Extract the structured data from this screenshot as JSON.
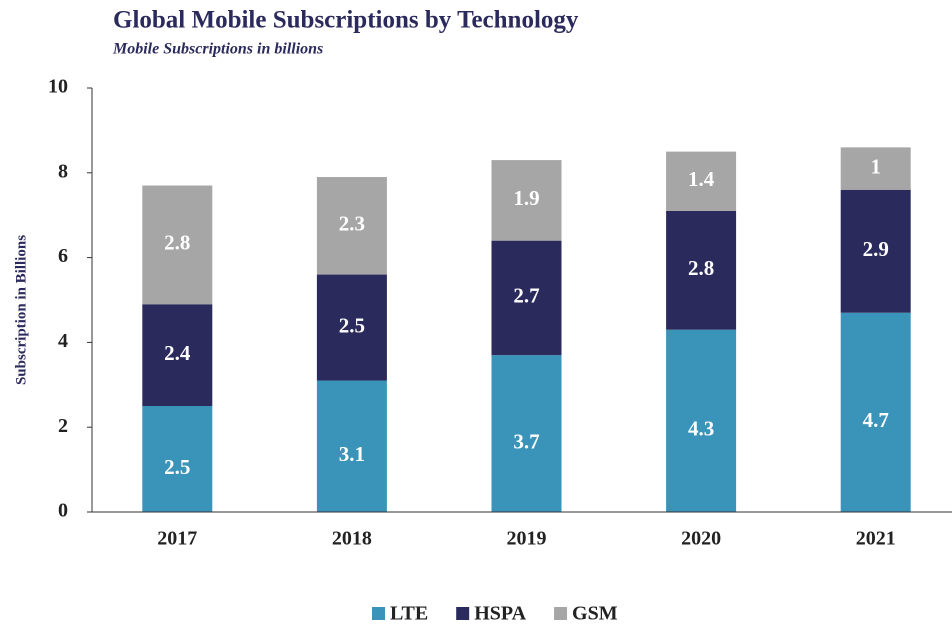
{
  "chart_data": {
    "type": "stacked_bar",
    "title": "Global Mobile Subscriptions by Technology",
    "subtitle": "Mobile Subscriptions in billions",
    "y_label": "Subscription in Billions",
    "categories": [
      "2017",
      "2018",
      "2019",
      "2020",
      "2021"
    ],
    "series": [
      {
        "name": "LTE",
        "color": "#3a93b8",
        "values": [
          2.5,
          3.1,
          3.7,
          4.3,
          4.7
        ]
      },
      {
        "name": "HSPA",
        "color": "#2b2a5c",
        "values": [
          2.4,
          2.5,
          2.7,
          2.8,
          2.9
        ]
      },
      {
        "name": "GSM",
        "color": "#a6a6a6",
        "values": [
          2.8,
          2.3,
          1.9,
          1.4,
          1
        ]
      }
    ],
    "ylim": [
      0,
      10
    ],
    "yticks": [
      0,
      2,
      4,
      6,
      8,
      10
    ],
    "legend": "bottom"
  }
}
